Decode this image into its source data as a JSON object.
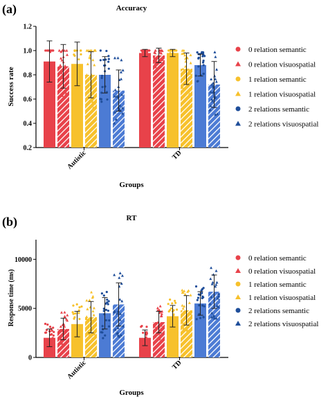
{
  "legend_colors": {
    "red": "#e8424a",
    "yellow": "#f7c12c",
    "blue": "#1f4e9a"
  },
  "legend_items": [
    {
      "label": "0 relation semantic",
      "color": "#e8424a",
      "marker": "circle"
    },
    {
      "label": "0 relation visuospatial",
      "color": "#e8424a",
      "marker": "triangle"
    },
    {
      "label": "1 relation semantic",
      "color": "#f7c12c",
      "marker": "circle"
    },
    {
      "label": "1 relation visuospatial",
      "color": "#f7c12c",
      "marker": "triangle"
    },
    {
      "label": "2 relations semantic",
      "color": "#1f4e9a",
      "marker": "circle"
    },
    {
      "label": "2 relations visuospatial",
      "color": "#1f4e9a",
      "marker": "triangle"
    }
  ],
  "chart_data": [
    {
      "type": "bar",
      "panel_label": "(a)",
      "title": "Accuracy",
      "xlabel": "Groups",
      "ylabel": "Success rate",
      "ylim": [
        0.2,
        1.2
      ],
      "yticks": [
        "0.2",
        "0.4",
        "0.6",
        "0.8",
        "1.0",
        "1.2"
      ],
      "ytick_values": [
        0.2,
        0.4,
        0.6,
        0.8,
        1.0,
        1.2
      ],
      "categories": [
        "Autistic",
        "TD"
      ],
      "series": [
        {
          "name": "0 relation semantic",
          "values": [
            0.91,
            0.98
          ],
          "errors": [
            0.17,
            0.03
          ]
        },
        {
          "name": "0 relation visuospatial",
          "values": [
            0.87,
            0.96
          ],
          "errors": [
            0.18,
            0.06
          ]
        },
        {
          "name": "1 relation semantic",
          "values": [
            0.89,
            0.98
          ],
          "errors": [
            0.18,
            0.03
          ]
        },
        {
          "name": "1 relation visuospatial",
          "values": [
            0.8,
            0.85
          ],
          "errors": [
            0.19,
            0.13
          ]
        },
        {
          "name": "2 relations semantic",
          "values": [
            0.8,
            0.88
          ],
          "errors": [
            0.15,
            0.09
          ]
        },
        {
          "name": "2 relations visuospatial",
          "values": [
            0.67,
            0.72
          ],
          "errors": [
            0.17,
            0.19
          ]
        }
      ],
      "grid": false,
      "legend": "right"
    },
    {
      "type": "bar",
      "panel_label": "(b)",
      "title": "RT",
      "xlabel": "Groups",
      "ylabel": "Response time (ms)",
      "ylim": [
        0,
        12000
      ],
      "yticks": [
        "0",
        "5000",
        "10000"
      ],
      "ytick_values": [
        0,
        5000,
        10000
      ],
      "categories": [
        "Autistic",
        "TD"
      ],
      "series": [
        {
          "name": "0 relation semantic",
          "values": [
            2000,
            2000
          ],
          "errors": [
            900,
            800
          ]
        },
        {
          "name": "0 relation visuospatial",
          "values": [
            2900,
            3600
          ],
          "errors": [
            1100,
            1100
          ]
        },
        {
          "name": "1 relation semantic",
          "values": [
            3400,
            4200
          ],
          "errors": [
            1300,
            1100
          ]
        },
        {
          "name": "1 relation visuospatial",
          "values": [
            4100,
            4800
          ],
          "errors": [
            1600,
            1500
          ]
        },
        {
          "name": "2 relations semantic",
          "values": [
            4500,
            5500
          ],
          "errors": [
            1600,
            1200
          ]
        },
        {
          "name": "2 relations visuospatial",
          "values": [
            5400,
            6700
          ],
          "errors": [
            2200,
            1700
          ]
        }
      ],
      "grid": false,
      "legend": "right"
    }
  ]
}
